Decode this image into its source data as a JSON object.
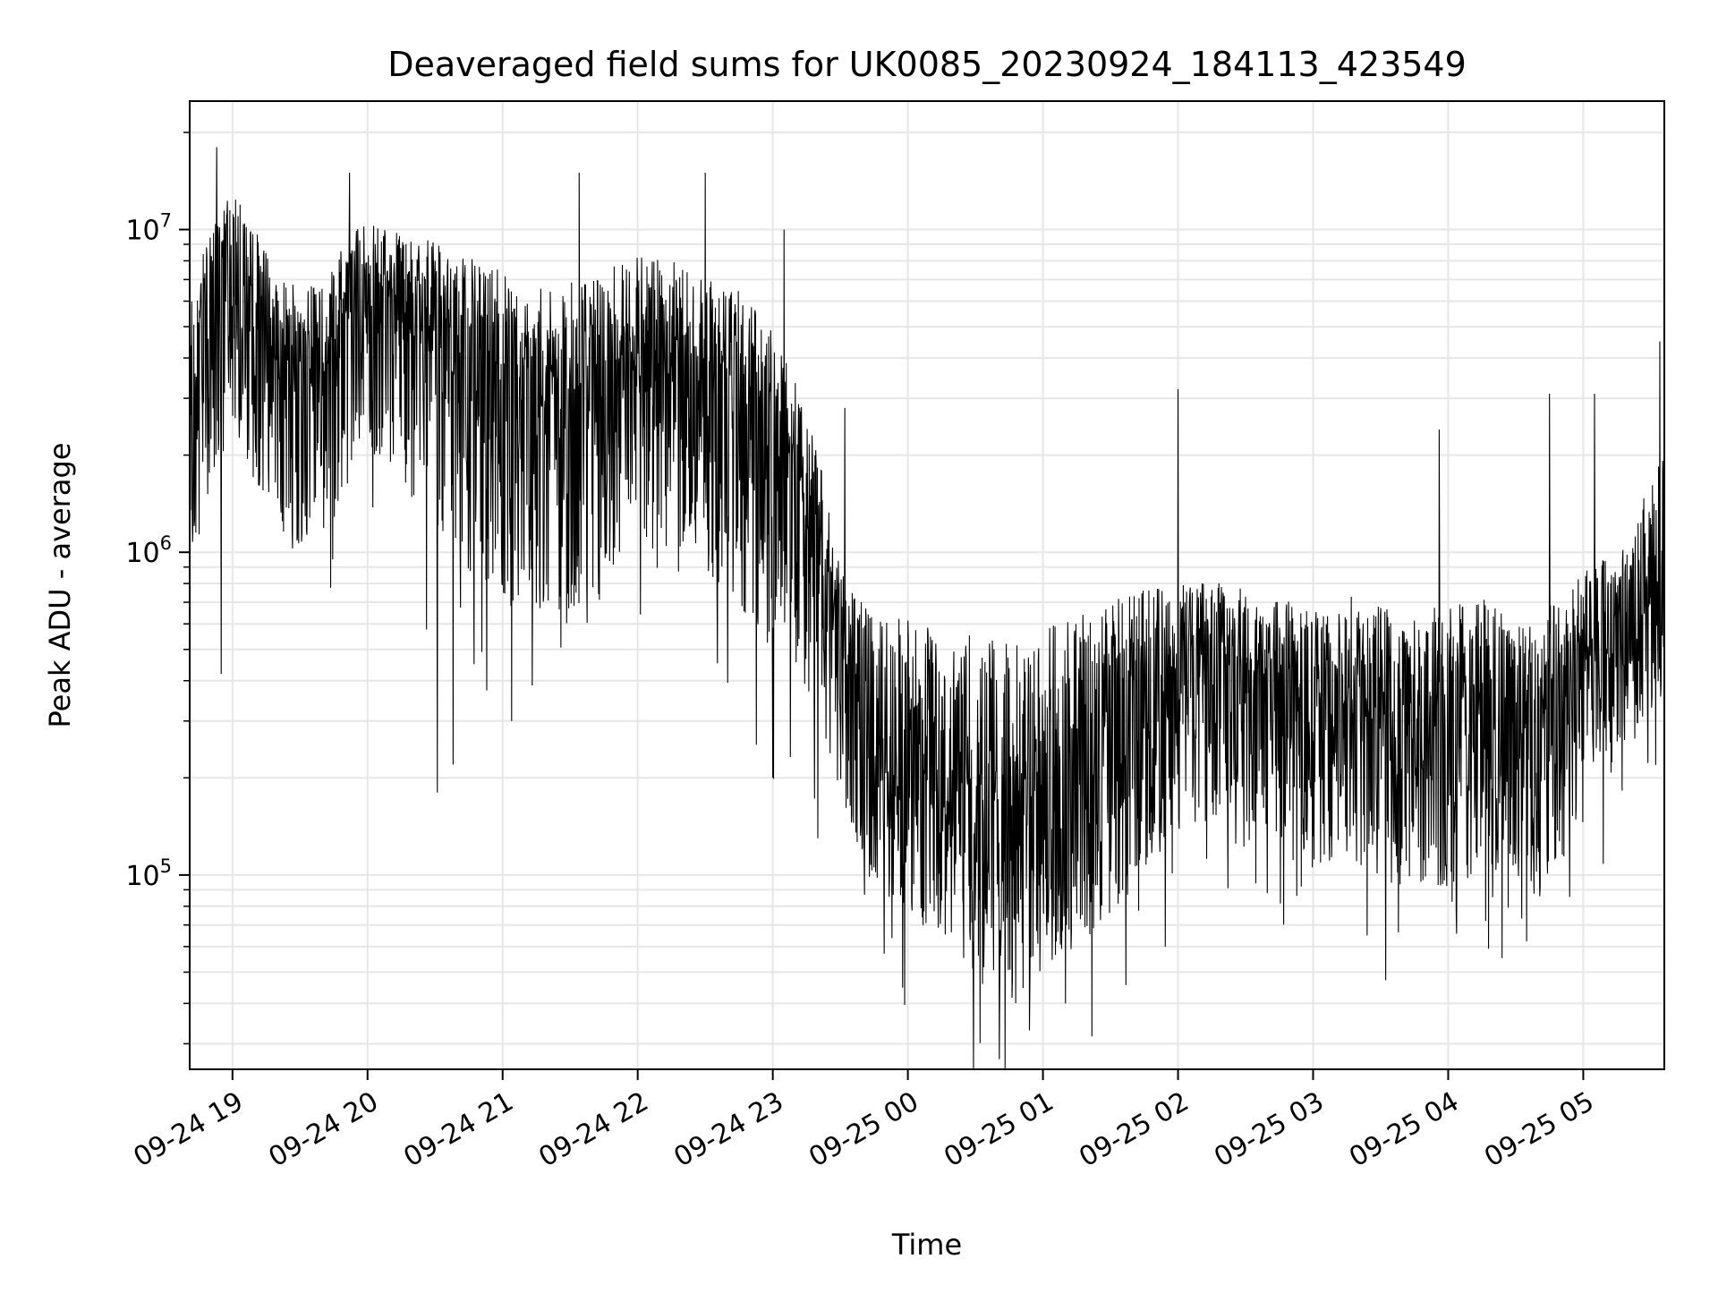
{
  "chart_data": {
    "type": "line",
    "title": "Deaveraged field sums for UK0085_20230924_184113_423549",
    "xlabel": "Time",
    "ylabel": "Peak ADU - average",
    "yscale": "log",
    "ylim": [
      25000,
      25000000
    ],
    "xlim": [
      "2023-09-24 18:41",
      "2023-09-25 05:36"
    ],
    "grid": true,
    "line_color": "#000000",
    "grid_color": "#e6e6e6",
    "x_ticks": [
      {
        "value": "2023-09-24 19:00",
        "label": "09-24 19"
      },
      {
        "value": "2023-09-24 20:00",
        "label": "09-24 20"
      },
      {
        "value": "2023-09-24 21:00",
        "label": "09-24 21"
      },
      {
        "value": "2023-09-24 22:00",
        "label": "09-24 22"
      },
      {
        "value": "2023-09-24 23:00",
        "label": "09-24 23"
      },
      {
        "value": "2023-09-25 00:00",
        "label": "09-25 00"
      },
      {
        "value": "2023-09-25 01:00",
        "label": "09-25 01"
      },
      {
        "value": "2023-09-25 02:00",
        "label": "09-25 02"
      },
      {
        "value": "2023-09-25 03:00",
        "label": "09-25 03"
      },
      {
        "value": "2023-09-25 04:00",
        "label": "09-25 04"
      },
      {
        "value": "2023-09-25 05:00",
        "label": "09-25 05"
      }
    ],
    "y_ticks": [
      {
        "value": 100000,
        "base": "10",
        "exp": "5"
      },
      {
        "value": 1000000,
        "base": "10",
        "exp": "6"
      },
      {
        "value": 10000000,
        "base": "10",
        "exp": "7"
      }
    ],
    "series": [
      {
        "x": [
          "2023-09-24 18:41",
          "2023-09-24 19:00",
          "2023-09-24 19:20",
          "2023-09-24 19:40",
          "2023-09-24 20:00",
          "2023-09-24 20:20",
          "2023-09-24 20:40",
          "2023-09-24 21:00",
          "2023-09-24 21:20",
          "2023-09-24 21:40",
          "2023-09-24 22:00",
          "2023-09-24 22:20",
          "2023-09-24 22:40",
          "2023-09-24 23:00",
          "2023-09-24 23:15",
          "2023-09-24 23:30",
          "2023-09-24 23:45",
          "2023-09-25 00:00",
          "2023-09-25 00:15",
          "2023-09-25 00:30",
          "2023-09-25 00:45",
          "2023-09-25 01:00",
          "2023-09-25 01:20",
          "2023-09-25 01:40",
          "2023-09-25 02:00",
          "2023-09-25 02:20",
          "2023-09-25 02:40",
          "2023-09-25 03:00",
          "2023-09-25 03:20",
          "2023-09-25 03:40",
          "2023-09-25 04:00",
          "2023-09-25 04:20",
          "2023-09-25 04:40",
          "2023-09-25 05:00",
          "2023-09-25 05:20",
          "2023-09-25 05:36"
        ],
        "center": [
          3500000,
          8000000,
          4000000,
          3500000,
          7000000,
          6000000,
          4500000,
          3500000,
          3000000,
          3000000,
          4500000,
          4000000,
          3500000,
          2500000,
          1500000,
          500000,
          250000,
          250000,
          200000,
          180000,
          150000,
          160000,
          250000,
          350000,
          450000,
          500000,
          400000,
          350000,
          350000,
          300000,
          300000,
          350000,
          250000,
          450000,
          600000,
          800000
        ],
        "spread_low": [
          0.25,
          0.3,
          0.25,
          0.3,
          0.3,
          0.25,
          0.2,
          0.2,
          0.2,
          0.2,
          0.25,
          0.25,
          0.2,
          0.2,
          0.25,
          0.3,
          0.35,
          0.3,
          0.3,
          0.25,
          0.25,
          0.3,
          0.25,
          0.25,
          0.3,
          0.3,
          0.35,
          0.3,
          0.3,
          0.3,
          0.3,
          0.3,
          0.3,
          0.35,
          0.4,
          0.45
        ],
        "spread_high": [
          2.5,
          2.3,
          2.5,
          3.0,
          2.0,
          2.2,
          2.8,
          3.5,
          4.0,
          4.0,
          3.0,
          3.0,
          3.0,
          3.5,
          2.5,
          2.4,
          4.5,
          5.0,
          6.0,
          6.5,
          8.0,
          8.0,
          5.0,
          3.5,
          2.6,
          2.2,
          2.8,
          3.0,
          3.5,
          3.5,
          4.0,
          3.5,
          4.5,
          3.0,
          2.5,
          5.0
        ],
        "peaks": [
          {
            "x": "2023-09-24 18:53",
            "y": 18000000
          },
          {
            "x": "2023-09-24 19:52",
            "y": 15000000
          },
          {
            "x": "2023-09-24 21:34",
            "y": 15000000
          },
          {
            "x": "2023-09-24 22:30",
            "y": 15000000
          },
          {
            "x": "2023-09-24 23:05",
            "y": 10000000
          },
          {
            "x": "2023-09-24 23:32",
            "y": 2800000
          },
          {
            "x": "2023-09-25 02:00",
            "y": 3200000
          },
          {
            "x": "2023-09-25 03:56",
            "y": 2400000
          },
          {
            "x": "2023-09-25 04:45",
            "y": 3100000
          },
          {
            "x": "2023-09-25 05:05",
            "y": 3100000
          },
          {
            "x": "2023-09-25 05:34",
            "y": 4500000
          }
        ],
        "dips": [
          {
            "x": "2023-09-24 18:55",
            "y": 420000
          },
          {
            "x": "2023-09-24 20:31",
            "y": 180000
          },
          {
            "x": "2023-09-24 20:38",
            "y": 220000
          },
          {
            "x": "2023-09-24 21:04",
            "y": 300000
          },
          {
            "x": "2023-09-24 23:00",
            "y": 200000
          },
          {
            "x": "2023-09-24 23:20",
            "y": 130000
          },
          {
            "x": "2023-09-25 00:54",
            "y": 33000
          },
          {
            "x": "2023-09-25 01:10",
            "y": 40000
          },
          {
            "x": "2023-09-25 03:24",
            "y": 65000
          }
        ]
      }
    ]
  }
}
